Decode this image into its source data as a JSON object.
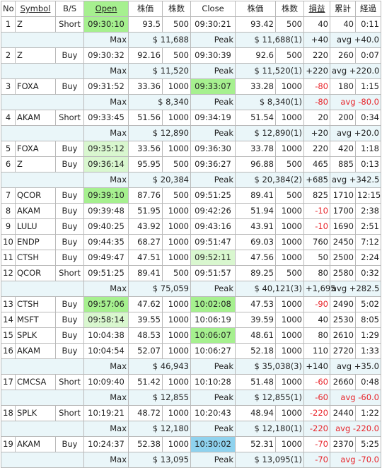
{
  "headers": [
    "No",
    "Symbol",
    "B/S",
    "Open",
    "株価",
    "株数",
    "Close",
    "株価",
    "株数",
    "損益",
    "累計",
    "経過"
  ],
  "rows": [
    {
      "type": "trade",
      "no": "1",
      "symbol": "Z",
      "bs": "Short",
      "open": "09:30:10",
      "open_hl": "green",
      "price1": "93.5",
      "qty1": "500",
      "close": "09:30:21",
      "close_hl": "",
      "price2": "93.42",
      "qty2": "500",
      "pl": "40",
      "pl_neg": false,
      "cum": "40",
      "elapsed": "0:11"
    },
    {
      "type": "sum",
      "max_label": "Max",
      "max": "$ 11,688",
      "peak_label": "Peak",
      "peak": "$ 11,688(1)",
      "pl": "+40",
      "pl_neg": false,
      "avg": "avg +40.0"
    },
    {
      "type": "trade",
      "no": "2",
      "symbol": "Z",
      "bs": "Buy",
      "open": "09:30:32",
      "open_hl": "",
      "price1": "92.16",
      "qty1": "500",
      "close": "09:30:39",
      "close_hl": "",
      "price2": "92.6",
      "qty2": "500",
      "pl": "220",
      "pl_neg": false,
      "cum": "260",
      "elapsed": "0:07"
    },
    {
      "type": "sum",
      "max_label": "Max",
      "max": "$ 11,520",
      "peak_label": "Peak",
      "peak": "$ 11,520(1)",
      "pl": "+220",
      "pl_neg": false,
      "avg": "avg +220.0"
    },
    {
      "type": "trade",
      "no": "3",
      "symbol": "FOXA",
      "bs": "Buy",
      "open": "09:31:52",
      "open_hl": "",
      "price1": "33.36",
      "qty1": "1000",
      "close": "09:33:07",
      "close_hl": "green",
      "price2": "33.28",
      "qty2": "1000",
      "pl": "-80",
      "pl_neg": true,
      "cum": "180",
      "elapsed": "1:15"
    },
    {
      "type": "sum",
      "max_label": "Max",
      "max": "$ 8,340",
      "peak_label": "Peak",
      "peak": "$ 8,340(1)",
      "pl": "-80",
      "pl_neg": true,
      "avg": "avg -80.0"
    },
    {
      "type": "trade",
      "no": "4",
      "symbol": "AKAM",
      "bs": "Short",
      "open": "09:33:45",
      "open_hl": "",
      "price1": "51.56",
      "qty1": "1000",
      "close": "09:34:19",
      "close_hl": "",
      "price2": "51.54",
      "qty2": "1000",
      "pl": "20",
      "pl_neg": false,
      "cum": "200",
      "elapsed": "0:34"
    },
    {
      "type": "sum",
      "max_label": "Max",
      "max": "$ 12,890",
      "peak_label": "Peak",
      "peak": "$ 12,890(1)",
      "pl": "+20",
      "pl_neg": false,
      "avg": "avg +20.0"
    },
    {
      "type": "trade",
      "no": "5",
      "symbol": "FOXA",
      "bs": "Buy",
      "open": "09:35:12",
      "open_hl": "lgreen",
      "price1": "33.56",
      "qty1": "1000",
      "close": "09:36:30",
      "close_hl": "",
      "price2": "33.78",
      "qty2": "1000",
      "pl": "220",
      "pl_neg": false,
      "cum": "420",
      "elapsed": "1:18"
    },
    {
      "type": "trade",
      "no": "6",
      "symbol": "Z",
      "bs": "Buy",
      "open": "09:36:14",
      "open_hl": "lgreen",
      "price1": "95.95",
      "qty1": "500",
      "close": "09:36:27",
      "close_hl": "",
      "price2": "96.88",
      "qty2": "500",
      "pl": "465",
      "pl_neg": false,
      "cum": "885",
      "elapsed": "0:13"
    },
    {
      "type": "sum",
      "max_label": "Max",
      "max": "$ 20,384",
      "peak_label": "Peak",
      "peak": "$ 20,384(2)",
      "pl": "+685",
      "pl_neg": false,
      "avg": "avg +342.5"
    },
    {
      "type": "trade",
      "no": "7",
      "symbol": "QCOR",
      "bs": "Buy",
      "open": "09:39:10",
      "open_hl": "green",
      "price1": "87.76",
      "qty1": "500",
      "close": "09:51:25",
      "close_hl": "",
      "price2": "89.41",
      "qty2": "500",
      "pl": "825",
      "pl_neg": false,
      "cum": "1710",
      "elapsed": "12:15"
    },
    {
      "type": "trade",
      "no": "8",
      "symbol": "AKAM",
      "bs": "Buy",
      "open": "09:39:48",
      "open_hl": "",
      "price1": "51.95",
      "qty1": "1000",
      "close": "09:42:26",
      "close_hl": "",
      "price2": "51.94",
      "qty2": "1000",
      "pl": "-10",
      "pl_neg": true,
      "cum": "1700",
      "elapsed": "2:38"
    },
    {
      "type": "trade",
      "no": "9",
      "symbol": "LULU",
      "bs": "Buy",
      "open": "09:40:25",
      "open_hl": "",
      "price1": "43.92",
      "qty1": "1000",
      "close": "09:43:16",
      "close_hl": "",
      "price2": "43.91",
      "qty2": "1000",
      "pl": "-10",
      "pl_neg": true,
      "cum": "1690",
      "elapsed": "2:51"
    },
    {
      "type": "trade",
      "no": "10",
      "symbol": "ENDP",
      "bs": "Buy",
      "open": "09:44:35",
      "open_hl": "",
      "price1": "68.27",
      "qty1": "1000",
      "close": "09:51:47",
      "close_hl": "",
      "price2": "69.03",
      "qty2": "1000",
      "pl": "760",
      "pl_neg": false,
      "cum": "2450",
      "elapsed": "7:12"
    },
    {
      "type": "trade",
      "no": "11",
      "symbol": "CTSH",
      "bs": "Buy",
      "open": "09:49:47",
      "open_hl": "",
      "price1": "47.51",
      "qty1": "1000",
      "close": "09:52:11",
      "close_hl": "lgreen",
      "price2": "47.56",
      "qty2": "1000",
      "pl": "50",
      "pl_neg": false,
      "cum": "2500",
      "elapsed": "2:24"
    },
    {
      "type": "trade",
      "no": "12",
      "symbol": "QCOR",
      "bs": "Short",
      "open": "09:51:25",
      "open_hl": "",
      "price1": "89.41",
      "qty1": "500",
      "close": "09:51:57",
      "close_hl": "",
      "price2": "89.25",
      "qty2": "500",
      "pl": "80",
      "pl_neg": false,
      "cum": "2580",
      "elapsed": "0:32"
    },
    {
      "type": "sum",
      "max_label": "Max",
      "max": "$ 75,059",
      "peak_label": "Peak",
      "peak": "$ 40,121(3)",
      "pl": "+1,695",
      "pl_neg": false,
      "avg": "avg +282.5"
    },
    {
      "type": "trade",
      "no": "13",
      "symbol": "CTSH",
      "bs": "Buy",
      "open": "09:57:06",
      "open_hl": "green",
      "price1": "47.62",
      "qty1": "1000",
      "close": "10:02:08",
      "close_hl": "green",
      "price2": "47.53",
      "qty2": "1000",
      "pl": "-90",
      "pl_neg": true,
      "cum": "2490",
      "elapsed": "5:02"
    },
    {
      "type": "trade",
      "no": "14",
      "symbol": "MSFT",
      "bs": "Buy",
      "open": "09:58:14",
      "open_hl": "lgreen",
      "price1": "39.55",
      "qty1": "1000",
      "close": "10:06:19",
      "close_hl": "",
      "price2": "39.59",
      "qty2": "1000",
      "pl": "40",
      "pl_neg": false,
      "cum": "2530",
      "elapsed": "8:05"
    },
    {
      "type": "trade",
      "no": "15",
      "symbol": "SPLK",
      "bs": "Buy",
      "open": "10:04:38",
      "open_hl": "",
      "price1": "48.53",
      "qty1": "1000",
      "close": "10:06:07",
      "close_hl": "green",
      "price2": "48.61",
      "qty2": "1000",
      "pl": "80",
      "pl_neg": false,
      "cum": "2610",
      "elapsed": "1:29"
    },
    {
      "type": "trade",
      "no": "16",
      "symbol": "AKAM",
      "bs": "Buy",
      "open": "10:04:54",
      "open_hl": "",
      "price1": "52.07",
      "qty1": "1000",
      "close": "10:06:27",
      "close_hl": "",
      "price2": "52.18",
      "qty2": "1000",
      "pl": "110",
      "pl_neg": false,
      "cum": "2720",
      "elapsed": "1:33"
    },
    {
      "type": "sum",
      "max_label": "Max",
      "max": "$ 46,943",
      "peak_label": "Peak",
      "peak": "$ 35,038(3)",
      "pl": "+140",
      "pl_neg": false,
      "avg": "avg +35.0"
    },
    {
      "type": "trade",
      "no": "17",
      "symbol": "CMCSA",
      "bs": "Short",
      "open": "10:09:40",
      "open_hl": "",
      "price1": "51.42",
      "qty1": "1000",
      "close": "10:10:28",
      "close_hl": "",
      "price2": "51.48",
      "qty2": "1000",
      "pl": "-60",
      "pl_neg": true,
      "cum": "2660",
      "elapsed": "0:48"
    },
    {
      "type": "sum",
      "max_label": "Max",
      "max": "$ 12,855",
      "peak_label": "Peak",
      "peak": "$ 12,855(1)",
      "pl": "-60",
      "pl_neg": true,
      "avg": "avg -60.0"
    },
    {
      "type": "trade",
      "no": "18",
      "symbol": "SPLK",
      "bs": "Short",
      "open": "10:19:21",
      "open_hl": "",
      "price1": "48.72",
      "qty1": "1000",
      "close": "10:20:43",
      "close_hl": "",
      "price2": "48.94",
      "qty2": "1000",
      "pl": "-220",
      "pl_neg": true,
      "cum": "2440",
      "elapsed": "1:22"
    },
    {
      "type": "sum",
      "max_label": "Max",
      "max": "$ 12,180",
      "peak_label": "Peak",
      "peak": "$ 12,180(1)",
      "pl": "-220",
      "pl_neg": true,
      "avg": "avg -220.0"
    },
    {
      "type": "trade",
      "no": "19",
      "symbol": "AKAM",
      "bs": "Buy",
      "open": "10:24:37",
      "open_hl": "",
      "price1": "52.38",
      "qty1": "1000",
      "close": "10:30:02",
      "close_hl": "blue",
      "price2": "52.31",
      "qty2": "1000",
      "pl": "-70",
      "pl_neg": true,
      "cum": "2370",
      "elapsed": "5:25"
    },
    {
      "type": "sum",
      "max_label": "Max",
      "max": "$ 13,095",
      "peak_label": "Peak",
      "peak": "$ 13,095(1)",
      "pl": "-70",
      "pl_neg": true,
      "avg": "avg -70.0"
    }
  ],
  "colors": {
    "open_header": "#a6f08f",
    "green": "#a6f08f",
    "light_green": "#d9f7cf",
    "blue": "#8fd2ee",
    "summary_bg": "#eaf6f9",
    "negative": "#e8252b"
  }
}
